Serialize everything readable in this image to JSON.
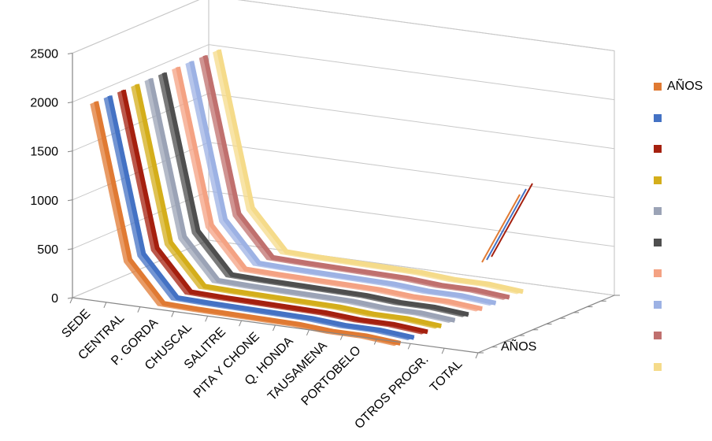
{
  "chart_data": {
    "type": "line",
    "title": "",
    "xlabel": "",
    "ylabel": "",
    "ylim": [
      0,
      2500
    ],
    "yticks": [
      "0",
      "500",
      "1000",
      "1500",
      "2000",
      "2500"
    ],
    "categories": [
      "SEDE",
      "CENTRAL",
      "P. GORDA",
      "CHUSCAL",
      "SALITRE",
      "PITA Y CHONE",
      "Q. HONDA",
      "TAUSAMENA",
      "PORTOBELO",
      "",
      "OTROS PROGR.",
      "TOTAL"
    ],
    "depth_axis_label": "AÑOS",
    "legend_position": "right",
    "grid": true,
    "series": [
      {
        "name": "AÑOS",
        "color": "#E07A33",
        "values": [
          2000,
          430,
          30,
          20,
          15,
          10,
          5,
          -20,
          -20,
          -50,
          null,
          null
        ]
      },
      {
        "name": "",
        "color": "#4472C4",
        "values": [
          2000,
          430,
          30,
          20,
          15,
          10,
          5,
          -20,
          -20,
          -50,
          null,
          null
        ]
      },
      {
        "name": "",
        "color": "#A5200F",
        "values": [
          2000,
          430,
          30,
          20,
          15,
          10,
          5,
          -20,
          -20,
          -50,
          null,
          null
        ]
      },
      {
        "name": "",
        "color": "#D4AE1B",
        "values": [
          2000,
          430,
          30,
          20,
          15,
          10,
          5,
          -20,
          -20,
          -50,
          null,
          null
        ]
      },
      {
        "name": "",
        "color": "#9BA3B6",
        "values": [
          2000,
          430,
          30,
          20,
          15,
          10,
          5,
          -20,
          -20,
          -50,
          null,
          null
        ]
      },
      {
        "name": "",
        "color": "#4F4F4F",
        "values": [
          2000,
          430,
          30,
          20,
          15,
          10,
          5,
          -20,
          -20,
          -50,
          null,
          null
        ]
      },
      {
        "name": "",
        "color": "#F4A283",
        "values": [
          2000,
          430,
          30,
          20,
          15,
          10,
          5,
          -20,
          -20,
          -50,
          null,
          null
        ]
      },
      {
        "name": "",
        "color": "#9DB2E4",
        "values": [
          2000,
          430,
          30,
          20,
          15,
          10,
          5,
          -20,
          -20,
          -50,
          null,
          null
        ]
      },
      {
        "name": "",
        "color": "#C0706E",
        "values": [
          2000,
          430,
          30,
          20,
          15,
          10,
          5,
          -20,
          -20,
          -50,
          null,
          null
        ]
      },
      {
        "name": "",
        "color": "#F5DB8A",
        "values": [
          2000,
          430,
          30,
          20,
          15,
          10,
          5,
          -20,
          -20,
          -50,
          null,
          null
        ]
      }
    ]
  }
}
